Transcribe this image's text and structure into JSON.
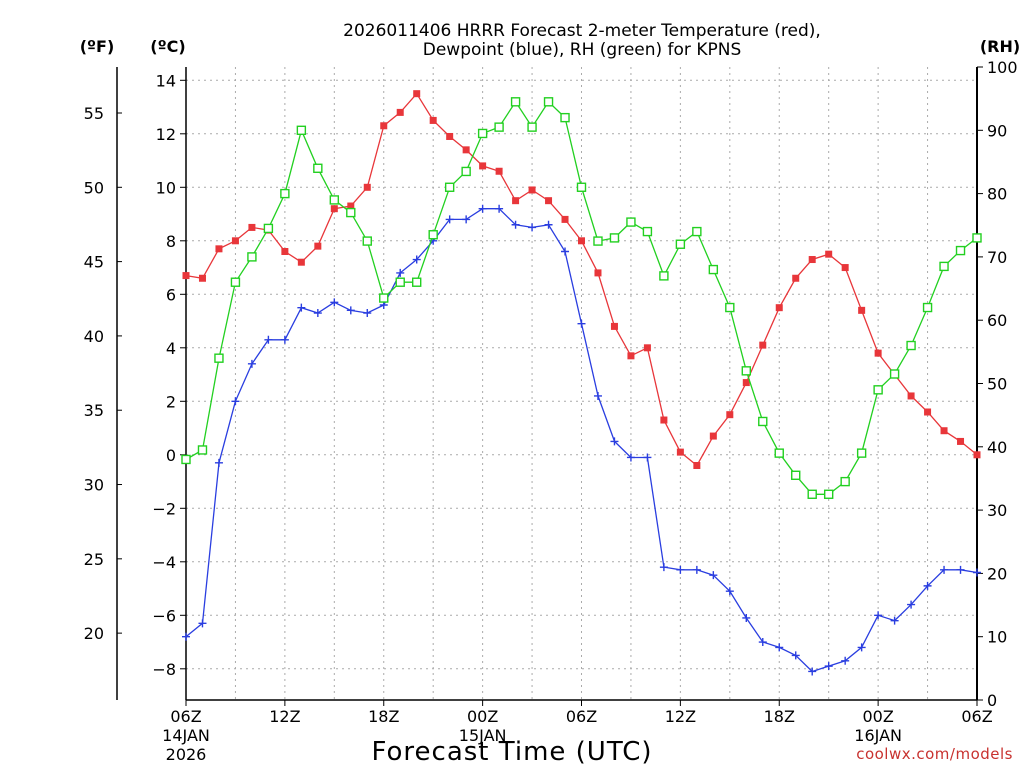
{
  "chart_data": {
    "type": "line",
    "title": "2026011406 HRRR Forecast 2-meter Temperature (red),",
    "subtitle": "Dewpoint (blue), RH (green) for KPNS",
    "xlabel": "Forecast Time (UTC)",
    "unit_f": "(ºF)",
    "unit_c": "(ºC)",
    "unit_rh": "(RH)",
    "credit": "coolwx.com/models",
    "grid": true,
    "xlim_hours": [
      0,
      48
    ],
    "ylim_c": [
      -9.5,
      14.5
    ],
    "ylim_f_ticks": [
      20,
      25,
      30,
      35,
      40,
      45,
      50,
      55
    ],
    "ylim_rh": [
      0,
      100
    ],
    "y_ticks_c": [
      "14",
      "12",
      "10",
      "8",
      "6",
      "4",
      "2",
      "0",
      "−2",
      "−4",
      "−6",
      "−8"
    ],
    "y_ticks_f": [
      "55",
      "50",
      "45",
      "40",
      "35",
      "30",
      "25",
      "20"
    ],
    "y_ticks_rh": [
      "100",
      "90",
      "80",
      "70",
      "60",
      "50",
      "40",
      "30",
      "20",
      "10",
      "0"
    ],
    "x_ticks": [
      {
        "label": "06Z",
        "date": "14JAN",
        "year": "2026"
      },
      {
        "label": "12Z",
        "date": "",
        "year": ""
      },
      {
        "label": "18Z",
        "date": "",
        "year": ""
      },
      {
        "label": "00Z",
        "date": "15JAN",
        "year": ""
      },
      {
        "label": "06Z",
        "date": "",
        "year": ""
      },
      {
        "label": "12Z",
        "date": "",
        "year": ""
      },
      {
        "label": "18Z",
        "date": "",
        "year": ""
      },
      {
        "label": "00Z",
        "date": "16JAN",
        "year": ""
      },
      {
        "label": "06Z",
        "date": "",
        "year": ""
      }
    ],
    "series": [
      {
        "name": "Temperature",
        "axis": "c",
        "color": "#e8363a",
        "marker": "filled-square",
        "values": [
          6.7,
          6.6,
          7.7,
          8.0,
          8.5,
          8.4,
          7.6,
          7.2,
          7.8,
          9.2,
          9.3,
          10.0,
          12.3,
          12.8,
          13.5,
          12.5,
          11.9,
          11.4,
          10.8,
          10.6,
          9.5,
          9.9,
          9.5,
          8.8,
          8.0,
          6.8,
          4.8,
          3.7,
          4.0,
          1.3,
          0.1,
          -0.4,
          0.7,
          1.5,
          2.7,
          4.1,
          5.5,
          6.6,
          7.3,
          7.5,
          7.0,
          5.4,
          3.8,
          3.0,
          2.2,
          1.6,
          0.9,
          0.5,
          0.0
        ]
      },
      {
        "name": "Dewpoint",
        "axis": "c",
        "color": "#2a3ee0",
        "marker": "plus",
        "values": [
          -6.8,
          -6.3,
          -0.3,
          2.0,
          3.4,
          4.3,
          4.3,
          5.5,
          5.3,
          5.7,
          5.4,
          5.3,
          5.6,
          6.8,
          7.3,
          8.0,
          8.8,
          8.8,
          9.2,
          9.2,
          8.6,
          8.5,
          8.6,
          7.6,
          4.9,
          2.2,
          0.5,
          -0.1,
          -0.1,
          -4.2,
          -4.3,
          -4.3,
          -4.5,
          -5.1,
          -6.1,
          -7.0,
          -7.2,
          -7.5,
          -8.1,
          -7.9,
          -7.7,
          -7.2,
          -6.0,
          -6.2,
          -5.6,
          -4.9,
          -4.3,
          -4.3,
          -4.4
        ]
      },
      {
        "name": "RH",
        "axis": "rh",
        "color": "#22d020",
        "marker": "open-square",
        "values": [
          38,
          39.5,
          54,
          66,
          70,
          74.5,
          80,
          90,
          84,
          79,
          77,
          72.5,
          63.5,
          66,
          66,
          73.5,
          81,
          83.5,
          89.5,
          90.5,
          94.5,
          90.5,
          94.5,
          92,
          81,
          72.5,
          73,
          75.5,
          74,
          67,
          72,
          74,
          68,
          62,
          52,
          44,
          39,
          35.5,
          32.5,
          32.5,
          34.5,
          39,
          49,
          51.5,
          56,
          62,
          68.5,
          71,
          73
        ]
      }
    ]
  }
}
